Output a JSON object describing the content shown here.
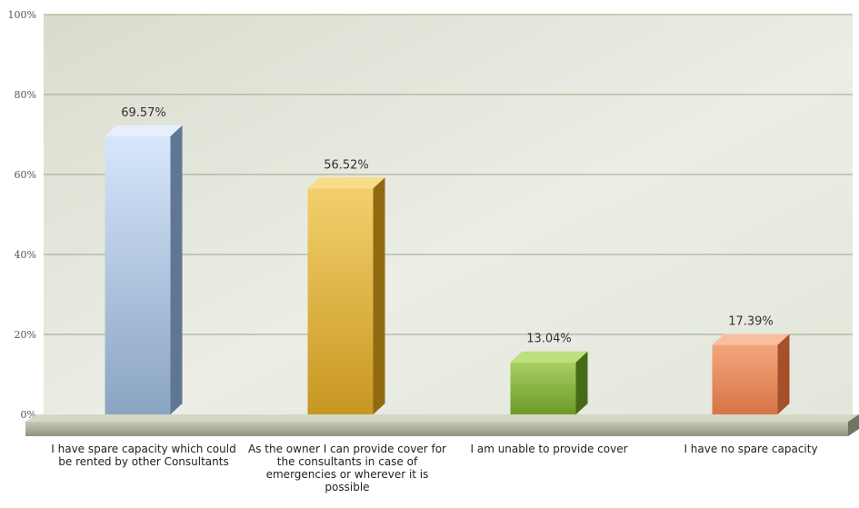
{
  "chart_data": {
    "type": "bar",
    "categories": [
      "I have spare capacity which could be rented by other Consultants",
      "As the owner I can provide cover for the consultants in case of emergencies or wherever it is possible",
      "I am unable to provide cover",
      "I have no spare capacity"
    ],
    "values": [
      69.57,
      56.52,
      13.04,
      17.39
    ],
    "value_labels": [
      "69.57%",
      "56.52%",
      "13.04%",
      "17.39%"
    ],
    "ylim": [
      0,
      100
    ],
    "yticks": [
      0,
      20,
      40,
      60,
      80,
      100
    ],
    "ytick_labels": [
      "0%",
      "20%",
      "40%",
      "60%",
      "80%",
      "100%"
    ],
    "grid": true,
    "title": "",
    "xlabel": "",
    "ylabel": "",
    "colors": {
      "bar_1": "#9db8d6",
      "bar_2": "#e0b44a",
      "bar_3": "#7fae3a",
      "bar_4": "#e48a5e",
      "gridline": "#9aa884",
      "plot_bg": "#e9ebe2",
      "floor": "#a9ae98"
    }
  }
}
